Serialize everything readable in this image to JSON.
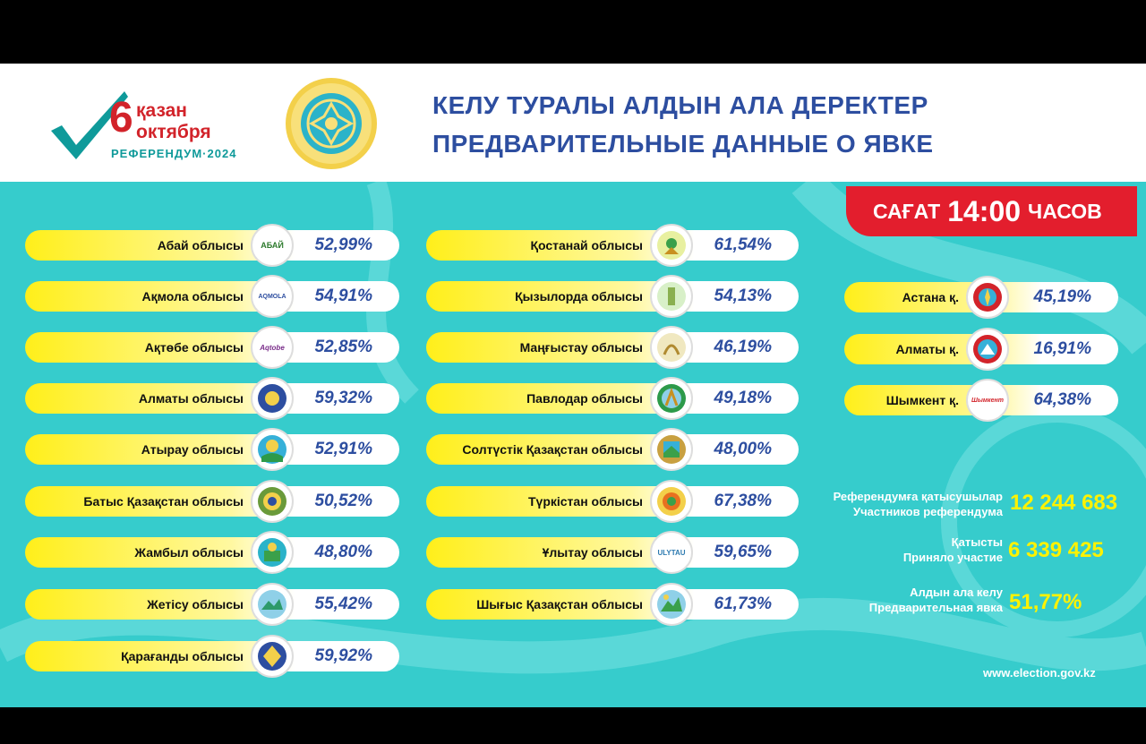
{
  "header": {
    "logo": {
      "day": "6",
      "month_kz": "қазан",
      "month_ru": "октября",
      "sub": "РЕФЕРЕНДУМ·2024"
    },
    "title_kz": "КЕЛУ ТУРАЛЫ АЛДЫН АЛА ДЕРЕКТЕР",
    "title_ru": "ПРЕДВАРИТЕЛЬНЫЕ ДАННЫЕ О ЯВКЕ"
  },
  "time": {
    "label_kz": "САҒАТ",
    "value": "14:00",
    "label_ru": "ЧАСОВ"
  },
  "regions_col1": [
    {
      "name": "Абай облысы",
      "pct": "52,99%",
      "badge": "АБАЙ"
    },
    {
      "name": "Ақмола облысы",
      "pct": "54,91%",
      "badge": "AQMOLA"
    },
    {
      "name": "Ақтөбе облысы",
      "pct": "52,85%",
      "badge": "Aqtobe"
    },
    {
      "name": "Алматы облысы",
      "pct": "59,32%",
      "badge": ""
    },
    {
      "name": "Атырау облысы",
      "pct": "52,91%",
      "badge": ""
    },
    {
      "name": "Батыс Қазақстан облысы",
      "pct": "50,52%",
      "badge": ""
    },
    {
      "name": "Жамбыл облысы",
      "pct": "48,80%",
      "badge": ""
    },
    {
      "name": "Жетісу облысы",
      "pct": "55,42%",
      "badge": ""
    },
    {
      "name": "Қарағанды облысы",
      "pct": "59,92%",
      "badge": ""
    }
  ],
  "regions_col2": [
    {
      "name": "Қостанай облысы",
      "pct": "61,54%",
      "badge": ""
    },
    {
      "name": "Қызылорда облысы",
      "pct": "54,13%",
      "badge": ""
    },
    {
      "name": "Маңғыстау облысы",
      "pct": "46,19%",
      "badge": ""
    },
    {
      "name": "Павлодар облысы",
      "pct": "49,18%",
      "badge": ""
    },
    {
      "name": "Солтүстік Қазақстан облысы",
      "pct": "48,00%",
      "badge": ""
    },
    {
      "name": "Түркістан облысы",
      "pct": "67,38%",
      "badge": ""
    },
    {
      "name": "Ұлытау облысы",
      "pct": "59,65%",
      "badge": "ULYTAU"
    },
    {
      "name": "Шығыс Қазақстан облысы",
      "pct": "61,73%",
      "badge": ""
    }
  ],
  "cities": [
    {
      "name": "Астана қ.",
      "pct": "45,19%",
      "badge": ""
    },
    {
      "name": "Алматы қ.",
      "pct": "16,91%",
      "badge": ""
    },
    {
      "name": "Шымкент қ.",
      "pct": "64,38%",
      "badge": "Шымкент"
    }
  ],
  "stats": {
    "participants_kz": "Референдумға қатысушылар",
    "participants_ru": "Участников референдума",
    "participants_value": "12 244 683",
    "took_part_kz": "Қатысты",
    "took_part_ru": "Приняло участие",
    "took_part_value": "6 339 425",
    "turnout_kz": "Алдын ала келу",
    "turnout_ru": "Предварительная явка",
    "turnout_value": "51,77%"
  },
  "website": "www.election.gov.kz",
  "colors": {
    "accent_red": "#e31e2d",
    "title_blue": "#2d4ea0",
    "teal_bg": "#36cccc",
    "pill_yellow": "#ffef1a",
    "stat_yellow": "#fff200"
  }
}
